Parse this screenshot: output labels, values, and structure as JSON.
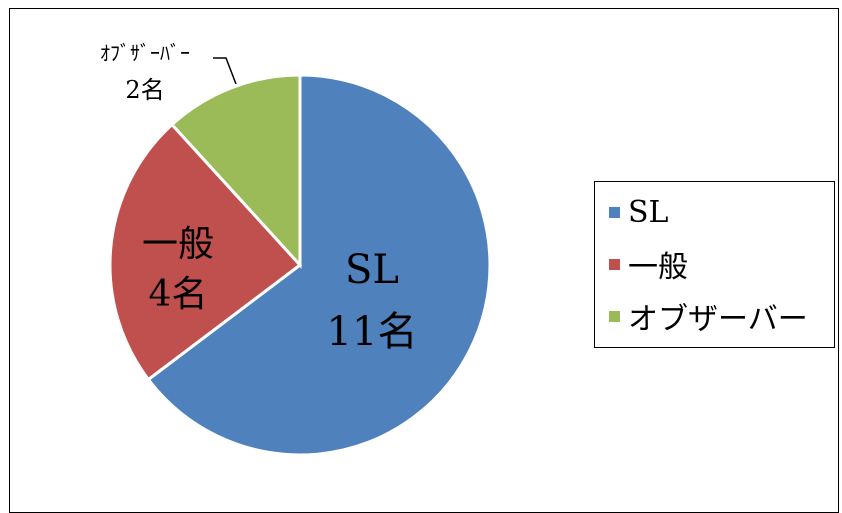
{
  "chart_data": {
    "type": "pie",
    "title": "",
    "unit": "名",
    "slices": [
      {
        "name": "SL",
        "value": 11,
        "color": "#4f81bd",
        "label_lines": [
          "SL",
          "11名"
        ]
      },
      {
        "name": "一般",
        "value": 4,
        "color": "#c0504d",
        "label_lines": [
          "一般",
          "4名"
        ]
      },
      {
        "name": "オブザーバー",
        "value": 2,
        "color": "#9bbb59",
        "label_lines": [
          "ｵﾌﾞｻﾞｰﾊﾞｰ",
          "2名"
        ]
      }
    ],
    "legend": {
      "position": "right",
      "entries": [
        "SL",
        "一般",
        "オブザーバー"
      ]
    },
    "start_angle": "12 o'clock",
    "direction": "clockwise"
  }
}
